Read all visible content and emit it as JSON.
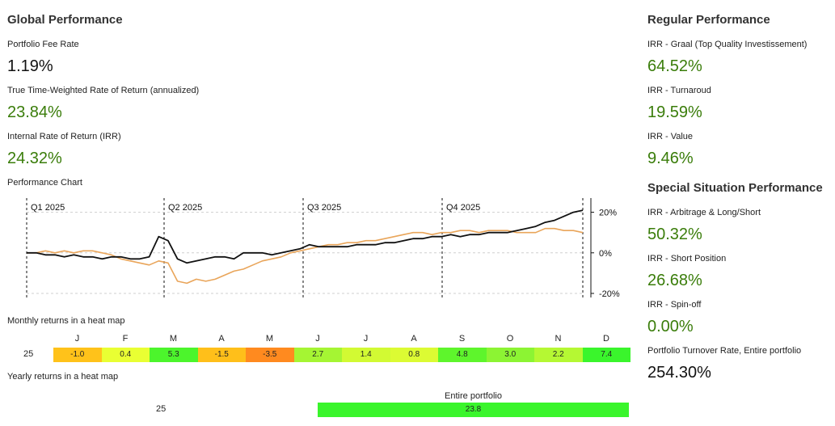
{
  "global": {
    "title": "Global Performance",
    "fee_label": "Portfolio Fee Rate",
    "fee_value": "1.19%",
    "twr_label": "True Time-Weighted Rate of Return (annualized)",
    "twr_value": "23.84%",
    "irr_label": "Internal Rate of Return (IRR)",
    "irr_value": "24.32%",
    "chart_label": "Performance Chart",
    "monthly_label": "Monthly returns in a heat map",
    "yearly_label": "Yearly returns in a heat map"
  },
  "regular": {
    "title": "Regular Performance",
    "items": [
      {
        "label": "IRR - Graal (Top Quality Investissement)",
        "value": "64.52%"
      },
      {
        "label": "IRR - Turnaroud",
        "value": "19.59%"
      },
      {
        "label": "IRR - Value",
        "value": "9.46%"
      }
    ]
  },
  "special": {
    "title": "Special Situation Performance",
    "items": [
      {
        "label": "IRR - Arbitrage & Long/Short",
        "value": "50.32%"
      },
      {
        "label": "IRR - Short Position",
        "value": "26.68%"
      },
      {
        "label": "IRR - Spin-off",
        "value": "0.00%"
      }
    ],
    "turnover_label": "Portfolio Turnover Rate, Entire portfolio",
    "turnover_value": "254.30%"
  },
  "heatmap": {
    "year": "25",
    "months": [
      "J",
      "F",
      "M",
      "A",
      "M",
      "J",
      "J",
      "A",
      "S",
      "O",
      "N",
      "D"
    ],
    "values": [
      "-1.0",
      "0.4",
      "5.3",
      "-1.5",
      "-3.5",
      "2.7",
      "1.4",
      "0.8",
      "4.8",
      "3.0",
      "2.2",
      "7.4"
    ],
    "colors": [
      "#ffc21a",
      "#e9ff33",
      "#4cf52c",
      "#ffbf1a",
      "#ff8a1f",
      "#a5f533",
      "#d2fa33",
      "#dcfb33",
      "#5ef52c",
      "#8cf433",
      "#b5f833",
      "#3af52c"
    ]
  },
  "yearly": {
    "year": "25",
    "column": "Entire portfolio",
    "value": "23.8",
    "color": "#3af52c"
  },
  "chart_data": {
    "type": "line",
    "quarters": [
      "Q1 2025",
      "Q2 2025",
      "Q3 2025",
      "Q4 2025"
    ],
    "yticks": [
      "20%",
      "0%",
      "-20%"
    ],
    "ylim": [
      -22,
      27
    ],
    "series": [
      {
        "color": "#111111",
        "values": [
          0,
          0,
          -1,
          -1,
          -2,
          -1,
          -2,
          -2,
          -3,
          -2,
          -2,
          -3,
          -3,
          -2,
          8,
          6,
          -3,
          -5,
          -4,
          -3,
          -2,
          -2,
          -3,
          0,
          0,
          0,
          -1,
          0,
          1,
          2,
          4,
          3,
          3,
          3,
          3,
          4,
          4,
          4,
          5,
          5,
          6,
          7,
          7,
          8,
          8,
          9,
          8,
          9,
          9,
          10,
          10,
          10,
          11,
          12,
          13,
          15,
          16,
          18,
          20,
          21
        ]
      },
      {
        "color": "#e9a55a",
        "values": [
          0,
          0,
          1,
          0,
          1,
          0,
          1,
          1,
          0,
          -1,
          -3,
          -4,
          -5,
          -6,
          -4,
          -5,
          -14,
          -15,
          -13,
          -14,
          -13,
          -11,
          -9,
          -8,
          -6,
          -4,
          -3,
          -2,
          0,
          1,
          2,
          3,
          4,
          4,
          5,
          5,
          6,
          6,
          7,
          8,
          9,
          10,
          10,
          9,
          10,
          10,
          11,
          11,
          10,
          11,
          11,
          11,
          10,
          10,
          10,
          12,
          12,
          11,
          11,
          10
        ]
      }
    ]
  }
}
